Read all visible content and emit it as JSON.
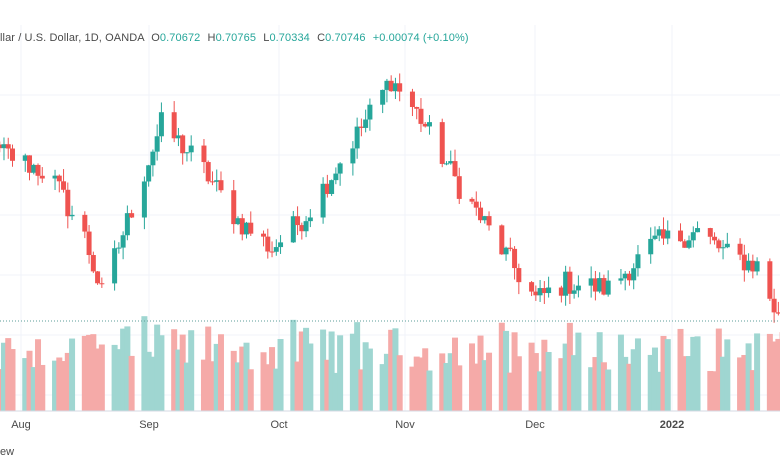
{
  "header": {
    "symbol": "llar / U.S. Dollar, 1D, OANDA",
    "open_label": "O",
    "open": "0.70672",
    "high_label": "H",
    "high": "0.70765",
    "low_label": "L",
    "low": "0.70334",
    "close_label": "C",
    "close": "0.70746",
    "change": "+0.00074 (+0.10%)"
  },
  "footer_text": "ew",
  "colors": {
    "up": "#26a69a",
    "down": "#ef5350",
    "up_volume": "#9fd6d1",
    "down_volume": "#f5aaa8",
    "grid": "#f0f3fa",
    "axis_text": "#4a4a4a",
    "dotted_line": "#5b9e98"
  },
  "chart_data": {
    "type": "candlestick",
    "x_labels": [
      "Aug",
      "Sep",
      "Oct",
      "Nov",
      "Dec",
      "2022"
    ],
    "x_label_dates": [
      "2021-08-01",
      "2021-09-01",
      "2021-10-01",
      "2021-11-01",
      "2021-12-01",
      "2022-01-01"
    ],
    "approximate_closes": [
      {
        "date": "2021-07-15",
        "close": 0.737
      },
      {
        "date": "2021-07-28",
        "close": 0.739
      },
      {
        "date": "2021-08-08",
        "close": 0.735
      },
      {
        "date": "2021-08-16",
        "close": 0.724
      },
      {
        "date": "2021-08-20",
        "close": 0.714
      },
      {
        "date": "2021-08-27",
        "close": 0.729
      },
      {
        "date": "2021-09-03",
        "close": 0.744
      },
      {
        "date": "2021-09-12",
        "close": 0.737
      },
      {
        "date": "2021-09-21",
        "close": 0.727
      },
      {
        "date": "2021-09-29",
        "close": 0.722
      },
      {
        "date": "2021-10-07",
        "close": 0.728
      },
      {
        "date": "2021-10-18",
        "close": 0.741
      },
      {
        "date": "2021-10-27",
        "close": 0.752
      },
      {
        "date": "2021-11-03",
        "close": 0.745
      },
      {
        "date": "2021-11-12",
        "close": 0.733
      },
      {
        "date": "2021-11-22",
        "close": 0.722
      },
      {
        "date": "2021-11-30",
        "close": 0.713
      },
      {
        "date": "2021-12-07",
        "close": 0.716
      },
      {
        "date": "2021-12-17",
        "close": 0.715
      },
      {
        "date": "2021-12-28",
        "close": 0.723
      },
      {
        "date": "2022-01-07",
        "close": 0.725
      },
      {
        "date": "2022-01-14",
        "close": 0.721
      },
      {
        "date": "2022-01-21",
        "close": 0.719
      },
      {
        "date": "2022-01-28",
        "close": 0.706
      }
    ],
    "volume": "shown as histogram below price, green for up days, red for down days"
  }
}
